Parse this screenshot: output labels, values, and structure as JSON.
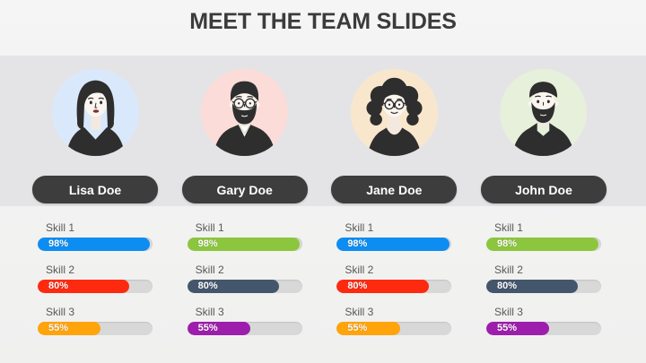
{
  "title": "MEET THE TEAM SLIDES",
  "colors": {
    "page_bg": "#f2f2f1",
    "band_bg": "#e4e4e7",
    "badge_bg": "#3d3d3d",
    "track": "#d8d8d8",
    "skill_label": "#595959",
    "title_text": "#3b3b3b",
    "blue": "#0d8df2",
    "red": "#fd2a10",
    "orange": "#ffa40a",
    "green": "#8cc63e",
    "navy": "#44566b",
    "purple": "#9d1dad"
  },
  "members": [
    {
      "name": "Lisa Doe",
      "avatar": "woman-bob-haircut",
      "avatar_bg": "#d9e9fb",
      "skills": [
        {
          "label": "Skill 1",
          "percent": "98%",
          "value": 98,
          "color": "#0d8df2"
        },
        {
          "label": "Skill 2",
          "percent": "80%",
          "value": 80,
          "color": "#fd2a10"
        },
        {
          "label": "Skill 3",
          "percent": "55%",
          "value": 55,
          "color": "#ffa40a"
        }
      ]
    },
    {
      "name": "Gary Doe",
      "avatar": "man-beard-glasses",
      "avatar_bg": "#fbdcd8",
      "skills": [
        {
          "label": "Skill 1",
          "percent": "98%",
          "value": 98,
          "color": "#8cc63e"
        },
        {
          "label": "Skill 2",
          "percent": "80%",
          "value": 80,
          "color": "#44566b"
        },
        {
          "label": "Skill 3",
          "percent": "55%",
          "value": 55,
          "color": "#9d1dad"
        }
      ]
    },
    {
      "name": "Jane Doe",
      "avatar": "woman-curly-hair-glasses",
      "avatar_bg": "#f9e7cd",
      "skills": [
        {
          "label": "Skill 1",
          "percent": "98%",
          "value": 98,
          "color": "#0d8df2"
        },
        {
          "label": "Skill 2",
          "percent": "80%",
          "value": 80,
          "color": "#fd2a10"
        },
        {
          "label": "Skill 3",
          "percent": "55%",
          "value": 55,
          "color": "#ffa40a"
        }
      ]
    },
    {
      "name": "John Doe",
      "avatar": "man-beard",
      "avatar_bg": "#e6f0da",
      "skills": [
        {
          "label": "Skill 1",
          "percent": "98%",
          "value": 98,
          "color": "#8cc63e"
        },
        {
          "label": "Skill 2",
          "percent": "80%",
          "value": 80,
          "color": "#44566b"
        },
        {
          "label": "Skill 3",
          "percent": "55%",
          "value": 55,
          "color": "#9d1dad"
        }
      ]
    }
  ]
}
